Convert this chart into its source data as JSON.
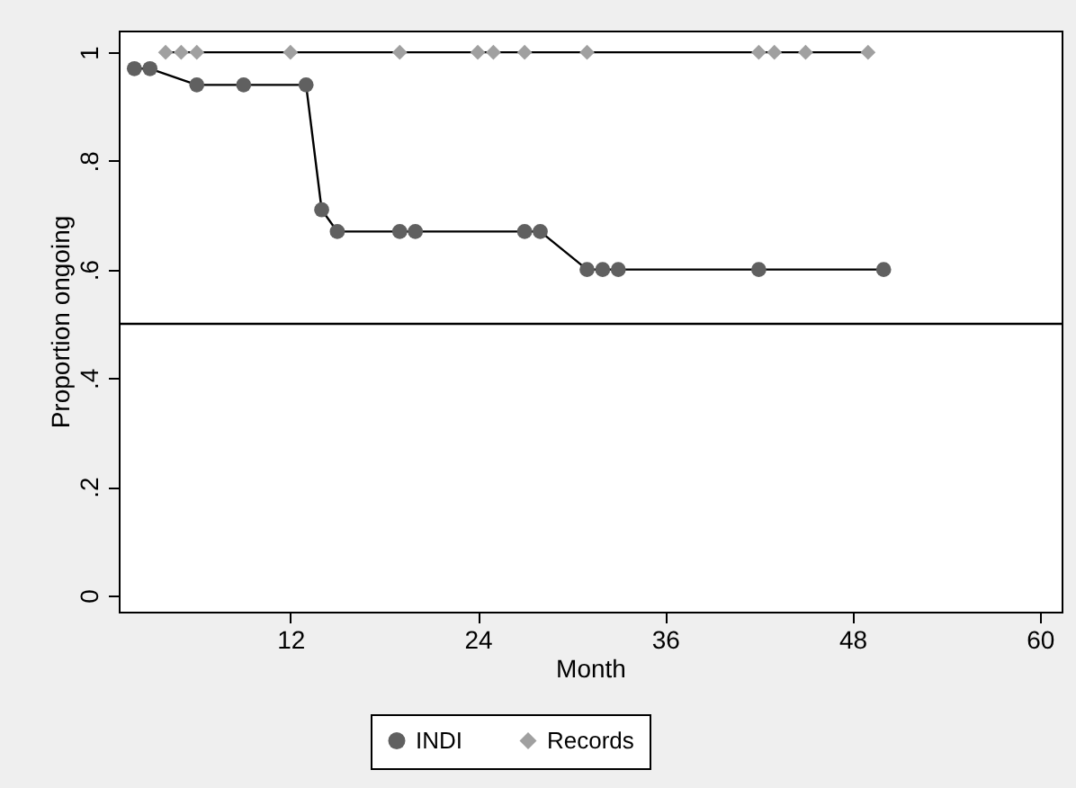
{
  "chart_data": {
    "type": "line",
    "xlabel": "Month",
    "ylabel": "Proportion ongoing",
    "xlim": [
      1,
      61.4
    ],
    "xticks": [
      12,
      24,
      36,
      48,
      60
    ],
    "ylim": [
      -0.03,
      1.04
    ],
    "yticks": [
      0,
      {
        "value": 0.2,
        "label": ".2"
      },
      {
        "value": 0.4,
        "label": ".4"
      },
      {
        "value": 0.6,
        "label": ".6"
      },
      {
        "value": 0.8,
        "label": ".8"
      },
      1
    ],
    "series": [
      {
        "name": "INDI",
        "color": "#606060",
        "marker": "circle",
        "x": [
          2,
          3,
          6,
          9,
          13,
          14,
          15,
          19,
          20,
          27,
          28,
          31,
          32,
          33,
          42,
          50
        ],
        "values": [
          0.97,
          0.97,
          0.94,
          0.94,
          0.94,
          0.71,
          0.67,
          0.67,
          0.67,
          0.67,
          0.67,
          0.6,
          0.6,
          0.6,
          0.6,
          0.6
        ]
      },
      {
        "name": "Records",
        "color": "#a0a0a0",
        "marker": "diamond",
        "x": [
          4,
          5,
          6,
          12,
          19,
          24,
          25,
          27,
          31,
          42,
          43,
          45,
          49
        ],
        "values": [
          1,
          1,
          1,
          1,
          1,
          1,
          1,
          1,
          1,
          1,
          1,
          1,
          1
        ]
      }
    ],
    "ref_lines": [
      {
        "axis": "y",
        "value": 0.5
      }
    ],
    "grid": false,
    "legend": "bottom"
  }
}
